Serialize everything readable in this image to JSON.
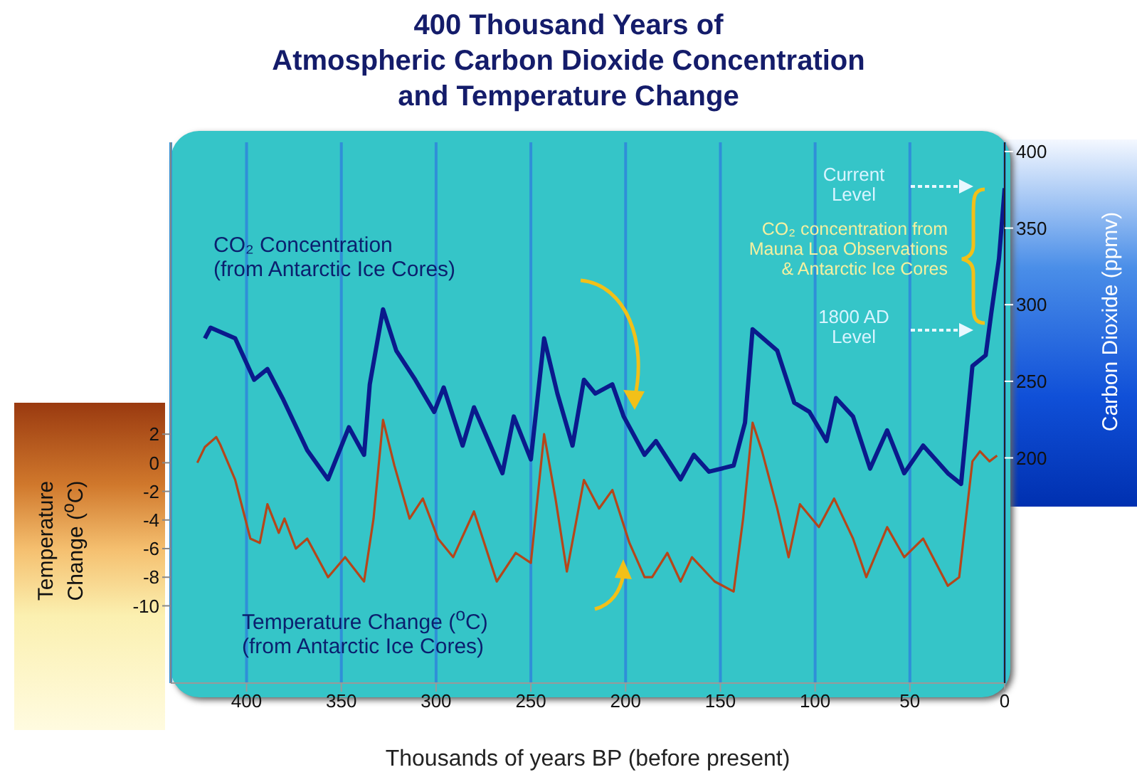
{
  "chart_data": {
    "type": "line",
    "title": "400 Thousand Years of\nAtmospheric Carbon Dioxide Concentration\nand Temperature Change",
    "xlabel": "Thousands of years BP (before present)",
    "ylabel": "Temperature Change ($^{o}$C)",
    "y2label": "Carbon Dioxide (ppmv)",
    "xlim": [
      440,
      0
    ],
    "xticks": [
      400,
      350,
      300,
      250,
      200,
      150,
      100,
      50,
      0
    ],
    "ylim": [
      -15.4,
      22.4
    ],
    "yticks": [
      2,
      0,
      -2,
      -4,
      -6,
      -8,
      -10
    ],
    "y2lim": [
      53,
      406
    ],
    "y2ticks": [
      200,
      250,
      300,
      350,
      400
    ],
    "grid": "x",
    "series": [
      {
        "axis": "y2",
        "color": "#0a1a8c",
        "x": [
          422,
          419,
          406,
          396,
          389,
          381,
          368,
          357,
          346,
          338,
          335,
          328,
          321,
          311,
          301,
          296,
          286,
          280,
          265,
          259,
          250,
          243,
          236,
          228,
          222,
          216,
          207,
          201,
          190,
          184,
          171,
          164,
          156,
          143,
          137,
          133,
          120,
          111,
          103,
          94,
          89,
          80,
          71,
          62,
          53,
          43,
          30,
          23,
          17,
          10,
          7,
          3,
          0
        ],
        "values": [
          278,
          285,
          278,
          251,
          258,
          239,
          205,
          186,
          220,
          202,
          248,
          297,
          270,
          251,
          230,
          246,
          208,
          233,
          190,
          227,
          199,
          278,
          242,
          208,
          251,
          242,
          248,
          227,
          202,
          211,
          186,
          202,
          191,
          195,
          223,
          284,
          270,
          236,
          230,
          211,
          239,
          227,
          193,
          218,
          190,
          208,
          190,
          183,
          260,
          267,
          295,
          330,
          376
        ]
      },
      {
        "axis": "y",
        "color": "#b5461a",
        "x": [
          426,
          422,
          416,
          414,
          406,
          398,
          393,
          389,
          383,
          380,
          374,
          368,
          357,
          348,
          338,
          333,
          328,
          322,
          314,
          307,
          299,
          291,
          280,
          268,
          258,
          250,
          243,
          237,
          231,
          222,
          214,
          207,
          198,
          190,
          186,
          178,
          171,
          165,
          153,
          143,
          138,
          133,
          128,
          120,
          114,
          108,
          98,
          90,
          80,
          73,
          62,
          53,
          43,
          30,
          24,
          17,
          13,
          8,
          4
        ],
        "values": [
          0,
          1.1,
          1.8,
          1.3,
          -1.2,
          -5.3,
          -5.6,
          -2.9,
          -4.9,
          -3.9,
          -6,
          -5.3,
          -8,
          -6.6,
          -8.3,
          -3.9,
          3,
          -0.2,
          -3.9,
          -2.5,
          -5.3,
          -6.6,
          -3.4,
          -8.3,
          -6.3,
          -7,
          2,
          -2.5,
          -7.6,
          -1.2,
          -3.2,
          -1.9,
          -5.6,
          -8,
          -8,
          -6.3,
          -8.3,
          -6.6,
          -8.3,
          -9,
          -3.9,
          2.8,
          0.8,
          -3.2,
          -6.6,
          -2.9,
          -4.5,
          -2.5,
          -5.3,
          -8,
          -4.5,
          -6.6,
          -5.3,
          -8.6,
          -8,
          0.1,
          0.8,
          0.1,
          0.5
        ]
      }
    ],
    "annotations": [
      "CO₂ Concentration\n(from Antarctic Ice Cores)",
      "Temperature Change ($^{o}$C)\n(from Antarctic Ice Cores)",
      "Current\nLevel",
      "CO₂ concentration from\nMauna Loa Observations\n& Antarctic Ice Cores",
      "1800 AD\nLevel"
    ]
  }
}
